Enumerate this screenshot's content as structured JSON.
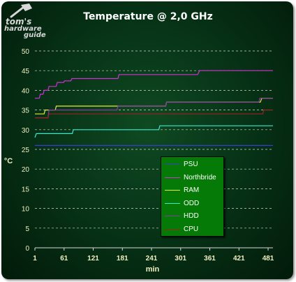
{
  "chart_data": {
    "type": "line",
    "title": "Temperature @ 2,0 GHz",
    "xlabel": "min",
    "ylabel": "°C",
    "xlim": [
      1,
      491
    ],
    "ylim": [
      0,
      50
    ],
    "y_ticks": [
      0,
      5,
      10,
      15,
      20,
      25,
      30,
      35,
      40,
      45,
      50
    ],
    "x_ticks": [
      1,
      61,
      121,
      181,
      241,
      301,
      361,
      421,
      481
    ],
    "grid": "horizontal dashed",
    "legend_position": "center-right",
    "series": [
      {
        "name": "PSU",
        "color": "#3a3ad8",
        "points": [
          [
            1,
            26
          ],
          [
            491,
            26
          ]
        ]
      },
      {
        "name": "Northbride",
        "color": "#d030d0",
        "points": [
          [
            1,
            38
          ],
          [
            10,
            38
          ],
          [
            12,
            39
          ],
          [
            18,
            39
          ],
          [
            20,
            40
          ],
          [
            28,
            40
          ],
          [
            30,
            41
          ],
          [
            45,
            41
          ],
          [
            47,
            42
          ],
          [
            60,
            42
          ],
          [
            62,
            42.4
          ],
          [
            75,
            42.4
          ],
          [
            77,
            43
          ],
          [
            90,
            43
          ],
          [
            92,
            43
          ],
          [
            172,
            43
          ],
          [
            174,
            44
          ],
          [
            336,
            44
          ],
          [
            340,
            45
          ],
          [
            491,
            45
          ]
        ]
      },
      {
        "name": "RAM",
        "color": "#e8e83a",
        "points": [
          [
            1,
            34
          ],
          [
            20,
            34
          ],
          [
            22,
            35
          ],
          [
            43,
            35
          ],
          [
            45,
            36
          ],
          [
            165,
            36
          ],
          [
            270,
            36
          ],
          [
            272,
            37
          ],
          [
            465,
            37
          ],
          [
            468,
            38
          ],
          [
            491,
            38
          ]
        ]
      },
      {
        "name": "ODD",
        "color": "#3ae8d0",
        "points": [
          [
            1,
            28
          ],
          [
            4,
            29
          ],
          [
            78,
            29
          ],
          [
            80,
            30
          ],
          [
            256,
            30
          ],
          [
            258,
            31
          ],
          [
            491,
            31
          ]
        ]
      },
      {
        "name": "HDD",
        "color": "#8a3aa8",
        "points": [
          [
            1,
            33
          ],
          [
            28,
            33
          ],
          [
            30,
            35
          ],
          [
            170,
            35
          ],
          [
            172,
            36
          ],
          [
            270,
            36
          ],
          [
            272,
            37
          ],
          [
            462,
            37
          ],
          [
            464,
            38
          ],
          [
            491,
            38
          ]
        ]
      },
      {
        "name": "CPU",
        "color": "#a02020",
        "points": [
          [
            1,
            33
          ],
          [
            28,
            33
          ],
          [
            30,
            34
          ],
          [
            470,
            34
          ],
          [
            472,
            35
          ],
          [
            491,
            35
          ]
        ]
      }
    ]
  },
  "logo": {
    "line1": "tom's",
    "line2": "hardware",
    "line3": "guide"
  }
}
